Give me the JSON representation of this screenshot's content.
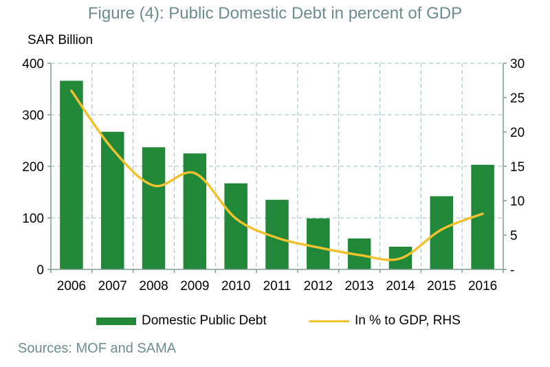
{
  "colors": {
    "bar": "#21883a",
    "line": "#f2c12e",
    "title": "#6e8c8c",
    "grid": "#9fbfbf",
    "axis": "#7f9999"
  },
  "chart_data": {
    "type": "bar",
    "title": "Figure (4): Public Domestic Debt in percent of GDP",
    "ylabel": "SAR Billion",
    "categories": [
      "2006",
      "2007",
      "2008",
      "2009",
      "2010",
      "2011",
      "2012",
      "2013",
      "2014",
      "2015",
      "2016"
    ],
    "ylim": [
      0,
      400
    ],
    "yticks": [
      "0",
      "100",
      "200",
      "300",
      "400"
    ],
    "y2lim": [
      0,
      30
    ],
    "y2ticks": [
      "-",
      "5",
      "10",
      "15",
      "20",
      "25",
      "30"
    ],
    "grid": true,
    "legend_position": "bottom",
    "series": [
      {
        "name": "Domestic Public Debt",
        "type": "bar",
        "axis": "left",
        "values": [
          366,
          267,
          237,
          225,
          167,
          135,
          99,
          60,
          44,
          142,
          203
        ]
      },
      {
        "name": "In % to GDP, RHS",
        "type": "line",
        "axis": "right",
        "values": [
          26,
          17.5,
          12.2,
          14,
          7.4,
          4.6,
          3.2,
          2.1,
          1.6,
          5.8,
          8.1
        ]
      }
    ],
    "source": "Sources: MOF and SAMA"
  }
}
